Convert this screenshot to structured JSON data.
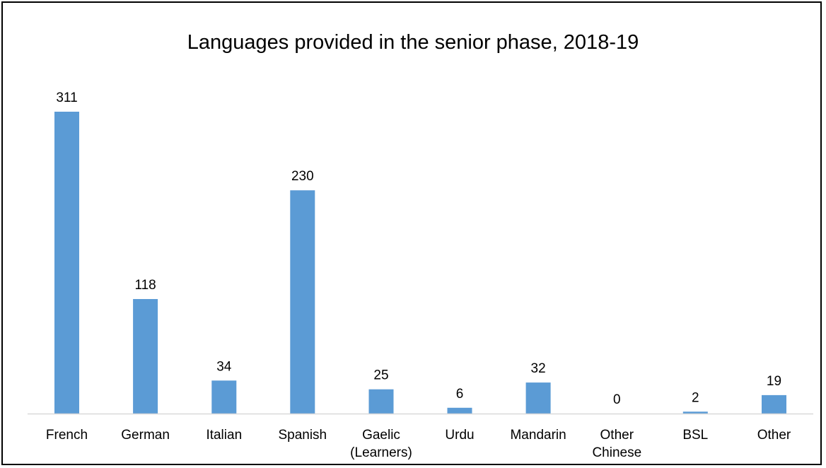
{
  "chart_data": {
    "type": "bar",
    "title": "Languages provided in the senior phase, 2018-19",
    "categories": [
      [
        "French"
      ],
      [
        "German"
      ],
      [
        "Italian"
      ],
      [
        "Spanish"
      ],
      [
        "Gaelic",
        "(Learners)"
      ],
      [
        "Urdu"
      ],
      [
        "Mandarin"
      ],
      [
        "Other",
        "Chinese"
      ],
      [
        "BSL"
      ],
      [
        "Other"
      ]
    ],
    "values": [
      311,
      118,
      34,
      230,
      25,
      6,
      32,
      0,
      2,
      19
    ],
    "ylim": [
      0,
      311
    ],
    "grid": false,
    "legend": "none",
    "bar_color": "#5b9bd5",
    "axis_color": "#d9d9d9"
  }
}
